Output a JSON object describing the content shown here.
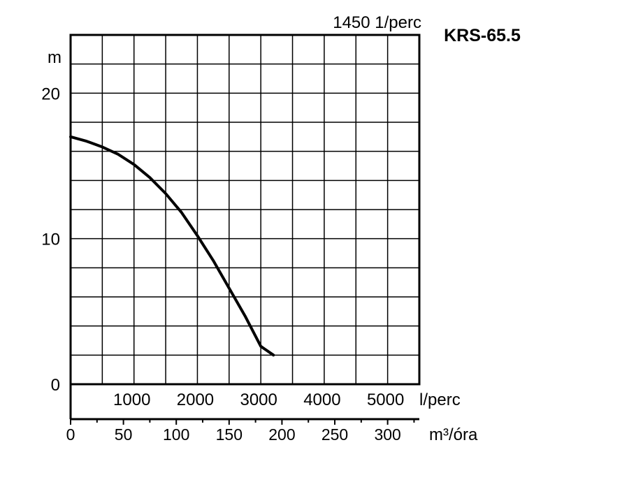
{
  "chart_data": {
    "type": "line",
    "title": "KRS-65.5",
    "speed_label": "1450 1/perc",
    "ylabel": "m",
    "ylim": [
      0,
      24
    ],
    "y_ticks": [
      0,
      10,
      20
    ],
    "x_primary": {
      "unit": "l/perc",
      "xlim": [
        0,
        5500
      ],
      "tick_labels": [
        "1000",
        "2000",
        "3000",
        "4000",
        "5000"
      ],
      "tick_values": [
        1000,
        2000,
        3000,
        4000,
        5000
      ]
    },
    "x_secondary": {
      "unit": "m³/óra",
      "tick_labels": [
        "0",
        "50",
        "100",
        "150",
        "200",
        "250",
        "300"
      ],
      "tick_values": [
        0,
        50,
        100,
        150,
        200,
        250,
        300
      ]
    },
    "grid": true,
    "series": [
      {
        "x": [
          0,
          250,
          500,
          750,
          1000,
          1250,
          1500,
          1750,
          2000,
          2250,
          2500,
          2750,
          3000,
          3200
        ],
        "y": [
          17.0,
          16.7,
          16.3,
          15.8,
          15.1,
          14.2,
          13.1,
          11.8,
          10.2,
          8.5,
          6.6,
          4.7,
          2.6,
          2.0
        ]
      }
    ]
  }
}
